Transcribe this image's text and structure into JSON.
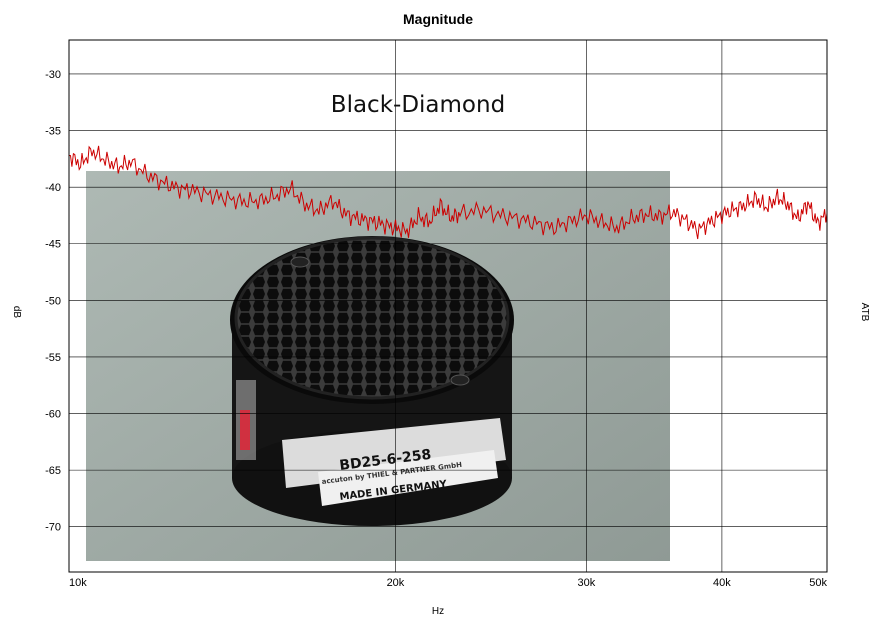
{
  "chart_data": {
    "type": "line",
    "title": "Magnitude",
    "xlabel": "Hz",
    "ylabel": "dB",
    "ylabel_right": "ATB",
    "annotation": "Black-Diamond",
    "xscale": "log",
    "xlim": [
      10000,
      50000
    ],
    "ylim": [
      -74,
      -27
    ],
    "grid": true,
    "x_ticks": [
      10000,
      20000,
      30000,
      40000,
      50000
    ],
    "x_tick_labels": [
      "10k",
      "20k",
      "30k",
      "40k",
      "50k"
    ],
    "y_ticks": [
      -30,
      -35,
      -40,
      -45,
      -50,
      -55,
      -60,
      -65,
      -70
    ],
    "y_tick_labels": [
      "-30",
      "-35",
      "-40",
      "-45",
      "-50",
      "-55",
      "-60",
      "-65",
      "-70"
    ],
    "line_color": "#cc0000",
    "series": [
      {
        "x": [
          10000,
          10250,
          10500,
          10800,
          11100,
          11400,
          11800,
          12200,
          12600,
          13000,
          13500,
          14000,
          14500,
          15000,
          15500,
          16000,
          16500,
          17000,
          17500,
          18000,
          18500,
          19000,
          19500,
          20000,
          20500,
          21000,
          21500,
          22000,
          22500,
          23000,
          24000,
          25000,
          26000,
          27000,
          28000,
          29000,
          30000,
          31000,
          32000,
          33000,
          34000,
          35000,
          36000,
          37000,
          38000,
          39000,
          40000,
          41000,
          42000,
          43000,
          44000,
          45000,
          46000,
          47000,
          48000,
          49000,
          50000
        ],
        "y": [
          -37.2,
          -38.0,
          -36.8,
          -37.6,
          -38.2,
          -37.8,
          -38.9,
          -39.6,
          -40.1,
          -40.3,
          -40.7,
          -41.0,
          -41.3,
          -41.2,
          -40.8,
          -40.1,
          -41.5,
          -42.1,
          -41.2,
          -42.4,
          -42.8,
          -43.0,
          -43.3,
          -43.6,
          -43.9,
          -42.6,
          -43.1,
          -41.6,
          -42.7,
          -42.3,
          -42.0,
          -42.5,
          -42.8,
          -43.2,
          -43.6,
          -43.0,
          -42.5,
          -43.1,
          -43.6,
          -42.8,
          -42.4,
          -42.6,
          -42.2,
          -42.9,
          -43.8,
          -43.1,
          -42.4,
          -42.0,
          -41.6,
          -41.0,
          -41.8,
          -40.9,
          -41.5,
          -42.8,
          -41.4,
          -43.2,
          -42.3
        ]
      }
    ]
  },
  "photo": {
    "model": "BD25-6-258",
    "brand": "accuton by THIEL & PARTNER GmbH",
    "origin": "MADE IN GERMANY"
  }
}
